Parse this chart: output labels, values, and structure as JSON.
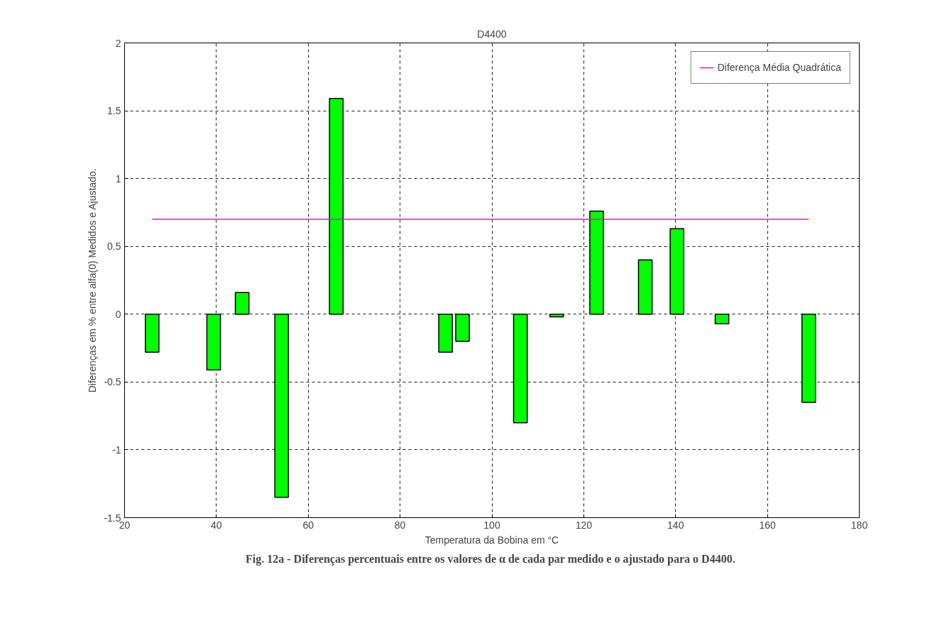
{
  "chart_data": {
    "type": "bar",
    "title": "D4400",
    "xlabel": "Temperatura da Bobina em °C",
    "ylabel": "Diferenças em % entre alfa(0) Medidos e Ajustado.",
    "x": [
      26.0,
      39.4,
      45.6,
      54.2,
      66.1,
      89.9,
      93.6,
      106.2,
      114.1,
      122.8,
      133.4,
      140.3,
      150.1,
      169.0
    ],
    "series": [
      {
        "color": "#00ff00",
        "values": [
          -0.28,
          -0.41,
          0.16,
          -1.35,
          1.59,
          -0.28,
          -0.2,
          -0.8,
          -0.02,
          0.76,
          0.4,
          0.63,
          -0.07,
          -0.65
        ]
      },
      {
        "type": "line",
        "name": "Diferença Média Quadrática",
        "color": "#ff00ff",
        "x": [
          26.0,
          169.0
        ],
        "values": [
          0.7,
          0.7
        ]
      }
    ],
    "xlim": [
      20,
      180
    ],
    "xticks": [
      20,
      40,
      60,
      80,
      100,
      120,
      140,
      160,
      180
    ],
    "ylim": [
      -1.5,
      2
    ],
    "yticks": [
      -1.5,
      -1,
      -0.5,
      0,
      0.5,
      1,
      1.5,
      2
    ],
    "grid": true,
    "legend": "top right",
    "annotations": [
      "Fig. 12a  - Diferenças percentuais entre os valores de α de cada par medido e o ajustado para o D4400."
    ]
  }
}
